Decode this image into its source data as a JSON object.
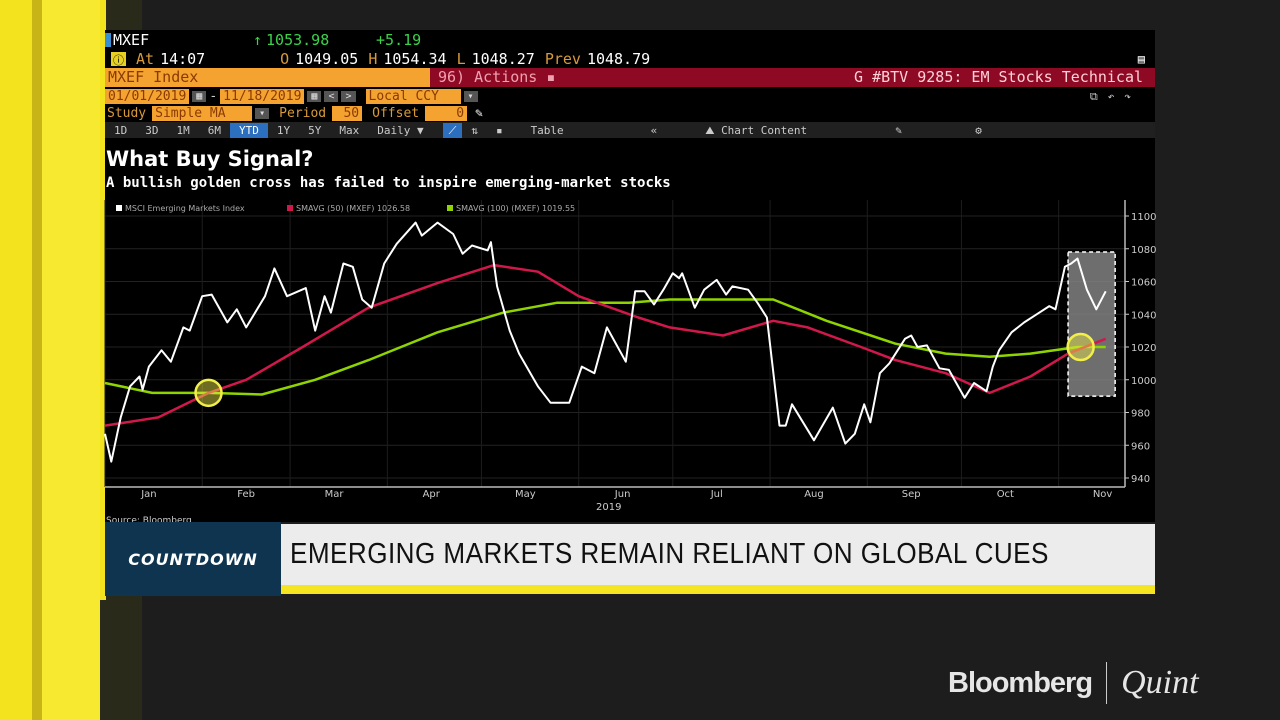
{
  "terminal": {
    "ticker": "MXEF",
    "last_arrow": "↑",
    "last": "1053.98",
    "change": "+5.19",
    "at_label": "At",
    "time": "14:07",
    "open_label": "O",
    "open": "1049.05",
    "high_label": "H",
    "high": "1054.34",
    "low_label": "L",
    "low": "1048.27",
    "prev_label": "Prev",
    "prev": "1048.79",
    "security": "MXEF Index",
    "actions": "96) Actions ▪",
    "page_title": "G #BTV 9285: EM Stocks Technical",
    "date_from": "01/01/2019",
    "date_to": "11/18/2019",
    "currency": "Local CCY",
    "study_label": "Study",
    "study": "Simple MA",
    "period_label": "Period",
    "period": "50",
    "offset_label": "Offset",
    "offset": "0",
    "ranges": [
      "1D",
      "3D",
      "1M",
      "6M",
      "YTD",
      "1Y",
      "5Y",
      "Max"
    ],
    "active_range": "YTD",
    "frequency": "Daily ▼",
    "table_label": "Table",
    "collapse": "«",
    "chart_content": "Chart Content"
  },
  "colors": {
    "index": "#ffffff",
    "sma50": "#d0184a",
    "sma100": "#8fd400",
    "highlight": "#f2ef4a",
    "orange": "#f4a331",
    "red_bar": "#8e0a24",
    "banner_blue": "#0e3450",
    "banner_yellow": "#f5e520"
  },
  "chart_data": {
    "type": "line",
    "title": "What Buy Signal?",
    "subtitle": "A bullish golden cross has failed to inspire emerging-market stocks",
    "x_ticks": [
      "Jan",
      "Feb",
      "Mar",
      "Apr",
      "May",
      "Jun",
      "Jul",
      "Aug",
      "Sep",
      "Oct",
      "Nov"
    ],
    "x_year": "2019",
    "xlim": [
      "2019-01-01",
      "2019-11-18"
    ],
    "ylim": [
      940,
      1100
    ],
    "y_ticks": [
      940,
      960,
      980,
      1000,
      1020,
      1040,
      1060,
      1080,
      1100
    ],
    "grid": true,
    "legend_position": "top-left",
    "series": [
      {
        "name": "MSCI Emerging Markets Index",
        "color": "#ffffff",
        "points": [
          [
            "2019-01-01",
            967
          ],
          [
            "2019-01-03",
            950
          ],
          [
            "2019-01-06",
            977
          ],
          [
            "2019-01-09",
            996
          ],
          [
            "2019-01-12",
            1002
          ],
          [
            "2019-01-13",
            994
          ],
          [
            "2019-01-15",
            1008
          ],
          [
            "2019-01-19",
            1018
          ],
          [
            "2019-01-22",
            1011
          ],
          [
            "2019-01-26",
            1032
          ],
          [
            "2019-01-28",
            1030
          ],
          [
            "2019-02-01",
            1051
          ],
          [
            "2019-02-04",
            1052
          ],
          [
            "2019-02-09",
            1035
          ],
          [
            "2019-02-12",
            1043
          ],
          [
            "2019-02-15",
            1032
          ],
          [
            "2019-02-21",
            1051
          ],
          [
            "2019-02-24",
            1068
          ],
          [
            "2019-02-28",
            1051
          ],
          [
            "2019-03-06",
            1056
          ],
          [
            "2019-03-09",
            1030
          ],
          [
            "2019-03-12",
            1051
          ],
          [
            "2019-03-14",
            1041
          ],
          [
            "2019-03-18",
            1071
          ],
          [
            "2019-03-21",
            1069
          ],
          [
            "2019-03-24",
            1049
          ],
          [
            "2019-03-27",
            1044
          ],
          [
            "2019-03-31",
            1071
          ],
          [
            "2019-04-04",
            1083
          ],
          [
            "2019-04-10",
            1096
          ],
          [
            "2019-04-12",
            1088
          ],
          [
            "2019-04-17",
            1096
          ],
          [
            "2019-04-22",
            1089
          ],
          [
            "2019-04-25",
            1077
          ],
          [
            "2019-04-28",
            1082
          ],
          [
            "2019-05-03",
            1079
          ],
          [
            "2019-05-04",
            1084
          ],
          [
            "2019-05-06",
            1057
          ],
          [
            "2019-05-10",
            1030
          ],
          [
            "2019-05-13",
            1016
          ],
          [
            "2019-05-19",
            996
          ],
          [
            "2019-05-23",
            986
          ],
          [
            "2019-05-29",
            986
          ],
          [
            "2019-06-02",
            1008
          ],
          [
            "2019-06-06",
            1004
          ],
          [
            "2019-06-10",
            1032
          ],
          [
            "2019-06-16",
            1011
          ],
          [
            "2019-06-19",
            1054
          ],
          [
            "2019-06-22",
            1054
          ],
          [
            "2019-06-25",
            1046
          ],
          [
            "2019-06-28",
            1055
          ],
          [
            "2019-07-01",
            1065
          ],
          [
            "2019-07-03",
            1062
          ],
          [
            "2019-07-04",
            1065
          ],
          [
            "2019-07-08",
            1044
          ],
          [
            "2019-07-11",
            1055
          ],
          [
            "2019-07-15",
            1061
          ],
          [
            "2019-07-18",
            1052
          ],
          [
            "2019-07-20",
            1057
          ],
          [
            "2019-07-25",
            1055
          ],
          [
            "2019-07-28",
            1047
          ],
          [
            "2019-07-31",
            1038
          ],
          [
            "2019-08-04",
            972
          ],
          [
            "2019-08-06",
            972
          ],
          [
            "2019-08-08",
            985
          ],
          [
            "2019-08-15",
            963
          ],
          [
            "2019-08-21",
            983
          ],
          [
            "2019-08-25",
            961
          ],
          [
            "2019-08-28",
            967
          ],
          [
            "2019-08-31",
            985
          ],
          [
            "2019-09-02",
            974
          ],
          [
            "2019-09-05",
            1004
          ],
          [
            "2019-09-08",
            1010
          ],
          [
            "2019-09-13",
            1025
          ],
          [
            "2019-09-15",
            1027
          ],
          [
            "2019-09-17",
            1020
          ],
          [
            "2019-09-20",
            1021
          ],
          [
            "2019-09-24",
            1007
          ],
          [
            "2019-09-27",
            1006
          ],
          [
            "2019-10-02",
            989
          ],
          [
            "2019-10-05",
            998
          ],
          [
            "2019-10-09",
            993
          ],
          [
            "2019-10-11",
            1008
          ],
          [
            "2019-10-13",
            1018
          ],
          [
            "2019-10-17",
            1029
          ],
          [
            "2019-10-21",
            1035
          ],
          [
            "2019-10-25",
            1040
          ],
          [
            "2019-10-29",
            1045
          ],
          [
            "2019-10-31",
            1043
          ],
          [
            "2019-11-03",
            1069
          ],
          [
            "2019-11-05",
            1071
          ],
          [
            "2019-11-07",
            1074
          ],
          [
            "2019-11-10",
            1055
          ],
          [
            "2019-11-13",
            1043
          ],
          [
            "2019-11-16",
            1054
          ]
        ]
      },
      {
        "name": "SMAVG (50) (MXEF) 1026.58",
        "color": "#d0184a",
        "points": [
          [
            "2019-01-01",
            972
          ],
          [
            "2019-01-18",
            977
          ],
          [
            "2019-02-03",
            992
          ],
          [
            "2019-02-15",
            1000
          ],
          [
            "2019-03-05",
            1020
          ],
          [
            "2019-03-26",
            1044
          ],
          [
            "2019-04-17",
            1059
          ],
          [
            "2019-05-05",
            1070
          ],
          [
            "2019-05-19",
            1066
          ],
          [
            "2019-06-01",
            1051
          ],
          [
            "2019-06-20",
            1038
          ],
          [
            "2019-06-30",
            1032
          ],
          [
            "2019-07-17",
            1027
          ],
          [
            "2019-08-02",
            1036
          ],
          [
            "2019-08-13",
            1032
          ],
          [
            "2019-08-30",
            1020
          ],
          [
            "2019-09-10",
            1012
          ],
          [
            "2019-09-26",
            1004
          ],
          [
            "2019-10-10",
            992
          ],
          [
            "2019-10-23",
            1002
          ],
          [
            "2019-11-04",
            1016
          ],
          [
            "2019-11-16",
            1025
          ]
        ]
      },
      {
        "name": "SMAVG (100) (MXEF) 1019.55",
        "color": "#8fd400",
        "points": [
          [
            "2019-01-01",
            998
          ],
          [
            "2019-01-16",
            992
          ],
          [
            "2019-02-03",
            992
          ],
          [
            "2019-02-20",
            991
          ],
          [
            "2019-03-09",
            1000
          ],
          [
            "2019-03-26",
            1012
          ],
          [
            "2019-04-17",
            1029
          ],
          [
            "2019-05-08",
            1041
          ],
          [
            "2019-05-25",
            1047
          ],
          [
            "2019-06-17",
            1047
          ],
          [
            "2019-06-30",
            1049
          ],
          [
            "2019-08-02",
            1049
          ],
          [
            "2019-08-19",
            1036
          ],
          [
            "2019-09-10",
            1022
          ],
          [
            "2019-09-26",
            1016
          ],
          [
            "2019-10-10",
            1014
          ],
          [
            "2019-10-23",
            1016
          ],
          [
            "2019-11-07",
            1020
          ],
          [
            "2019-11-16",
            1020
          ]
        ]
      }
    ],
    "annotations": [
      {
        "type": "circle",
        "date": "2019-02-03",
        "value": 992
      },
      {
        "type": "circle",
        "date": "2019-11-08",
        "value": 1020
      },
      {
        "type": "highlight-box",
        "from": "2019-11-04",
        "to": "2019-11-19",
        "ymin": 990,
        "ymax": 1078
      }
    ],
    "source": "Source: Bloomberg"
  },
  "banner": {
    "show": "COUNTDOWN",
    "headline": "EMERGING MARKETS REMAIN RELIANT ON GLOBAL CUES"
  },
  "logo": {
    "left": "Bloomberg",
    "right": "Quint"
  }
}
